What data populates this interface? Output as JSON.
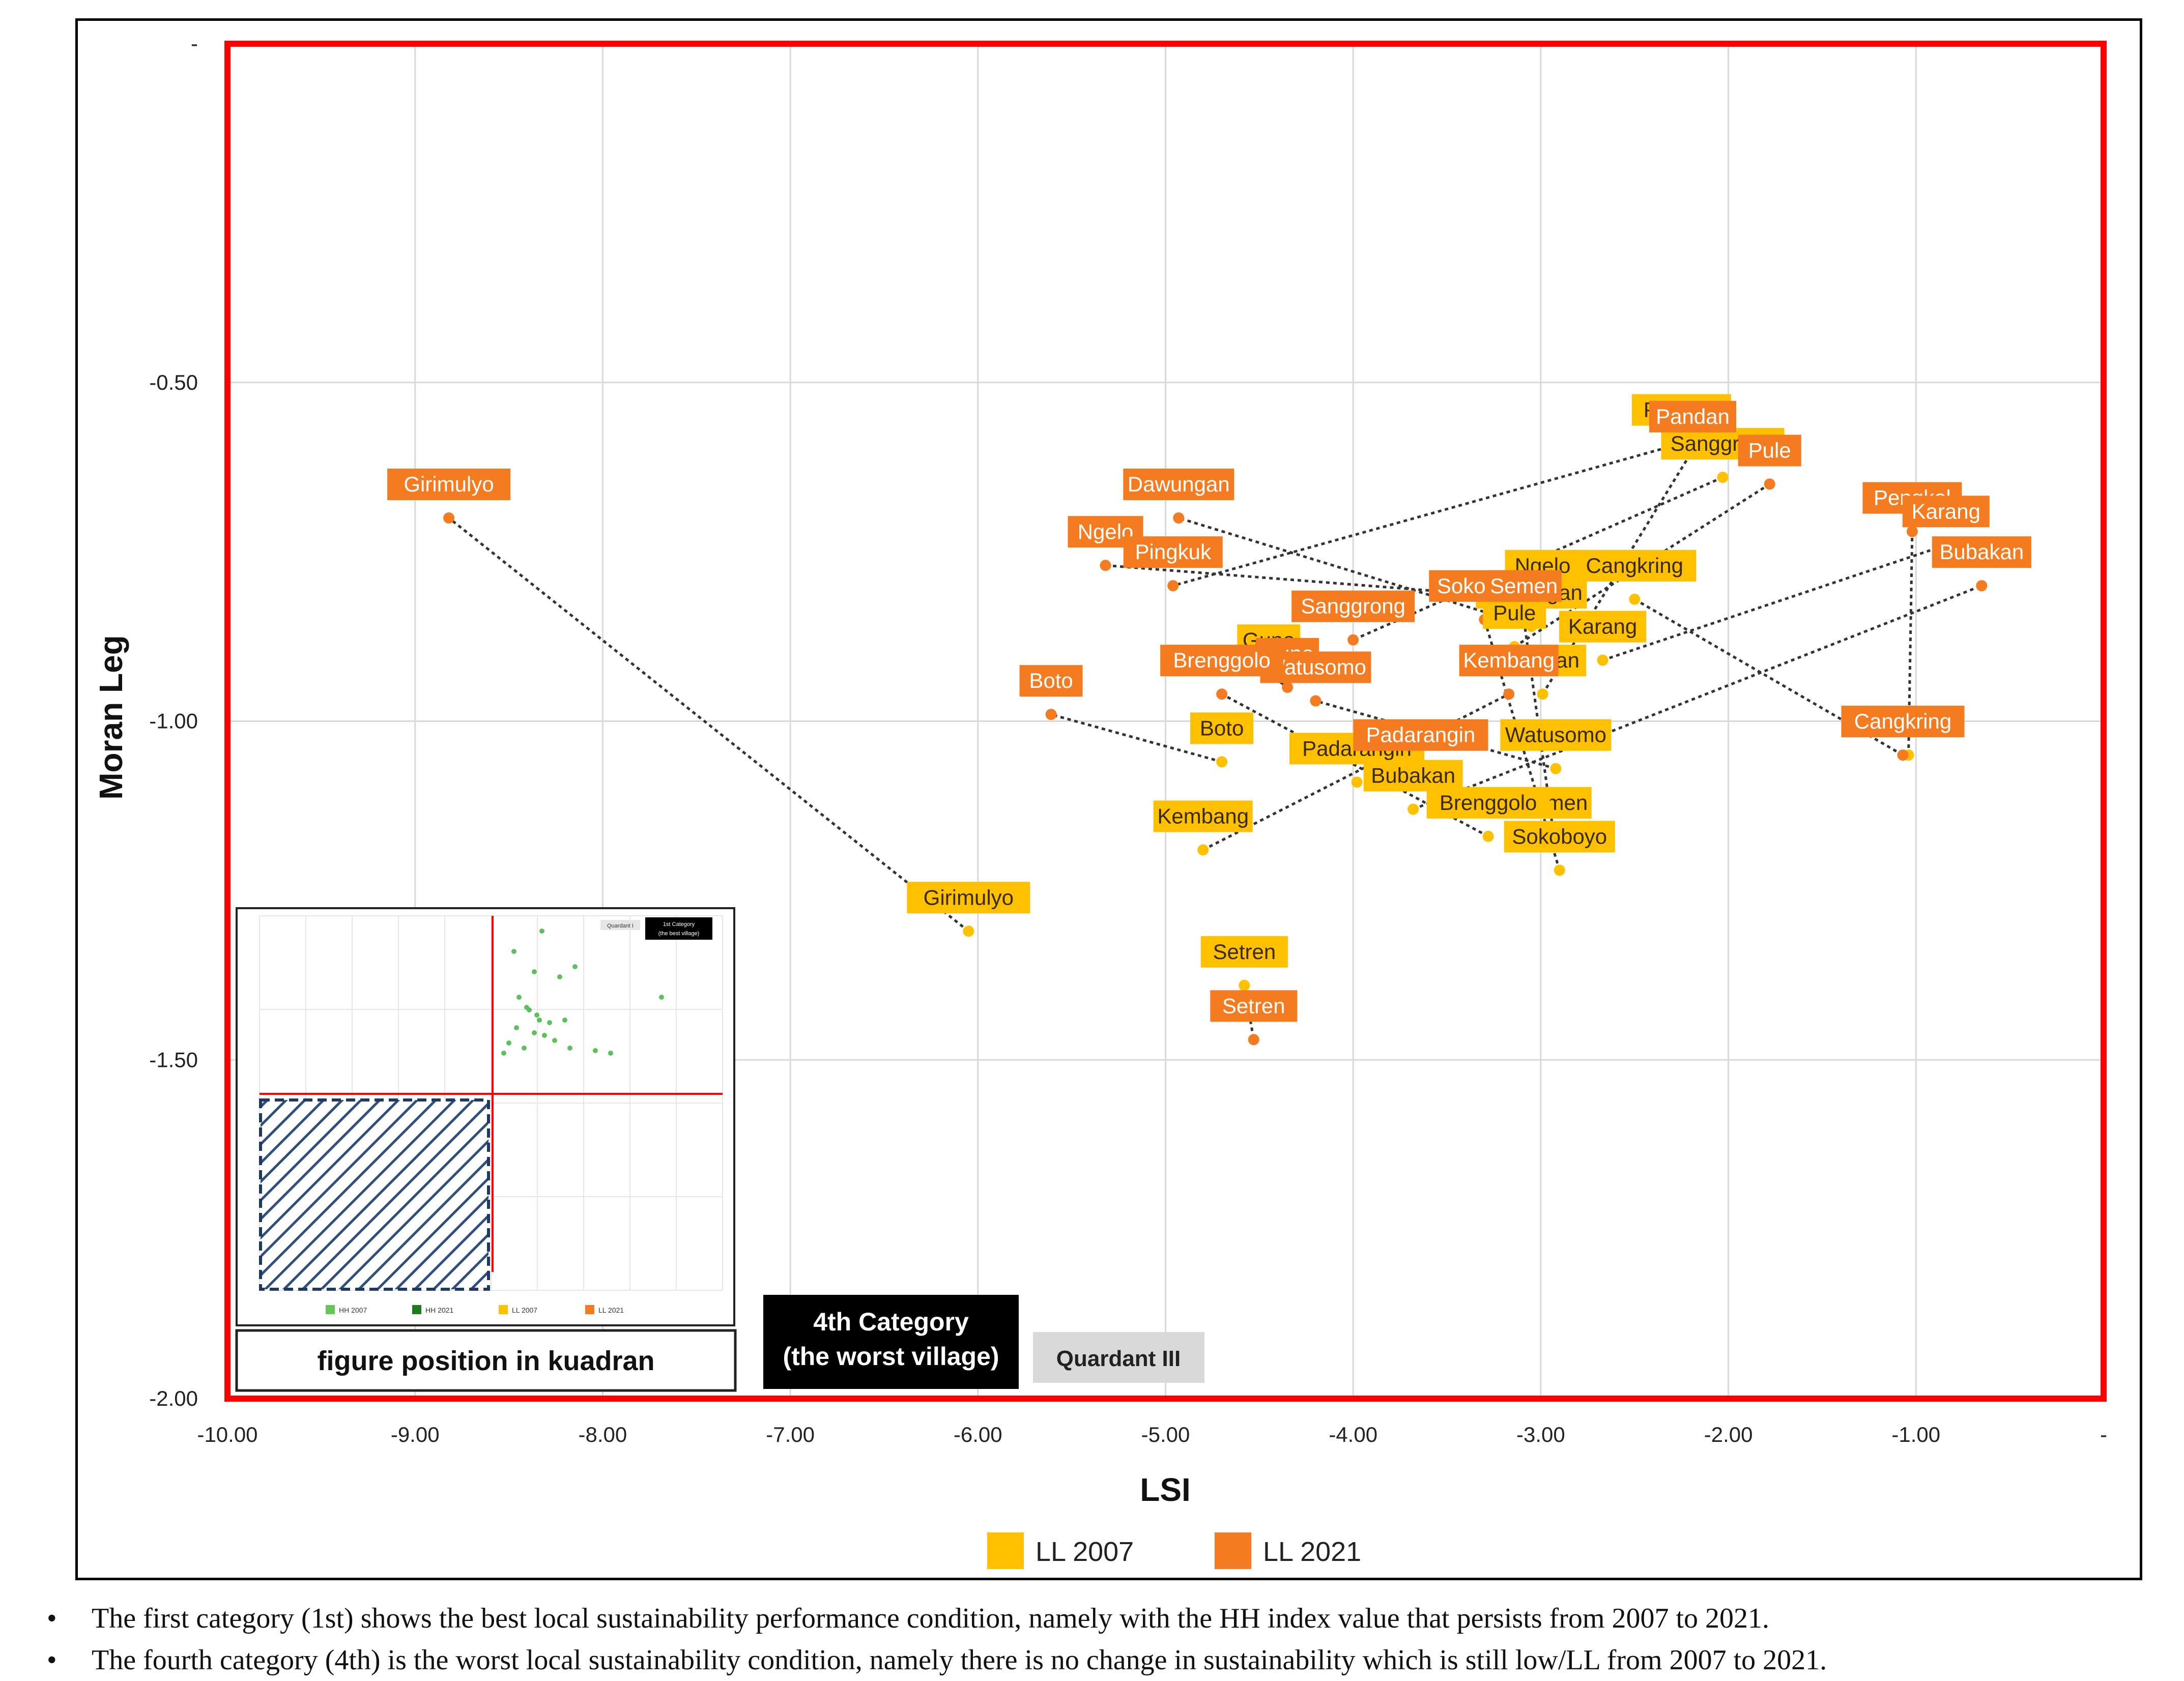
{
  "chart_data": {
    "type": "scatter",
    "xlabel": "LSI",
    "ylabel": "Moran Leg",
    "xlim": [
      -10,
      0
    ],
    "ylim": [
      -2,
      0
    ],
    "x_ticks": [
      -10,
      -9,
      -8,
      -7,
      -6,
      -5,
      -4,
      -3,
      -2,
      -1,
      0
    ],
    "x_tick_labels": [
      "-10.00",
      "-9.00",
      "-8.00",
      "-7.00",
      "-6.00",
      "-5.00",
      "-4.00",
      "-3.00",
      "-2.00",
      "-1.00",
      "-"
    ],
    "y_ticks": [
      0,
      -0.5,
      -1,
      -1.5,
      -2
    ],
    "y_tick_labels": [
      "-",
      "-0.50",
      "-1.00",
      "-1.50",
      "-2.00"
    ],
    "grid": true,
    "series": [
      {
        "name": "LL 2007",
        "color": "#ffc000",
        "points": [
          {
            "label": "Pingkuk",
            "x": -2.25,
            "y": -0.59
          },
          {
            "label": "Sanggrong",
            "x": -2.03,
            "y": -0.64
          },
          {
            "label": "Ngelo",
            "x": -2.99,
            "y": -0.82
          },
          {
            "label": "Cangkring",
            "x": -2.5,
            "y": -0.82
          },
          {
            "label": "Dawungan",
            "x": -3.05,
            "y": -0.86
          },
          {
            "label": "Pule",
            "x": -3.14,
            "y": -0.89
          },
          {
            "label": "Karang",
            "x": -2.67,
            "y": -0.91
          },
          {
            "label": "Guno",
            "x": -4.45,
            "y": -0.93
          },
          {
            "label": "Pandan",
            "x": -2.99,
            "y": -0.96
          },
          {
            "label": "Pengkol",
            "x": -1.04,
            "y": -1.05
          },
          {
            "label": "Boto",
            "x": -4.7,
            "y": -1.06
          },
          {
            "label": "Padarangin",
            "x": -3.98,
            "y": -1.09
          },
          {
            "label": "Watusomo",
            "x": -2.92,
            "y": -1.07
          },
          {
            "label": "Bubakan",
            "x": -3.68,
            "y": -1.13
          },
          {
            "label": "Semen",
            "x": -2.93,
            "y": -1.17
          },
          {
            "label": "Brenggolo",
            "x": -3.28,
            "y": -1.17
          },
          {
            "label": "Sokoboyo",
            "x": -2.9,
            "y": -1.22
          },
          {
            "label": "Kembang",
            "x": -4.8,
            "y": -1.19
          },
          {
            "label": "Girimulyo",
            "x": -6.05,
            "y": -1.31
          },
          {
            "label": "Setren",
            "x": -4.58,
            "y": -1.39
          }
        ]
      },
      {
        "name": "LL 2021",
        "color": "#f47b20",
        "points": [
          {
            "label": "Pandan",
            "x": -2.19,
            "y": -0.6
          },
          {
            "label": "Pule",
            "x": -1.78,
            "y": -0.65
          },
          {
            "label": "Girimulyo",
            "x": -8.82,
            "y": -0.7
          },
          {
            "label": "Dawungan",
            "x": -4.93,
            "y": -0.7
          },
          {
            "label": "Pengkol",
            "x": -1.02,
            "y": -0.72
          },
          {
            "label": "Karang",
            "x": -0.84,
            "y": -0.74
          },
          {
            "label": "Ngelo",
            "x": -5.32,
            "y": -0.77
          },
          {
            "label": "Pingkuk",
            "x": -4.96,
            "y": -0.8
          },
          {
            "label": "Bubakan",
            "x": -0.65,
            "y": -0.8
          },
          {
            "label": "Sokoboyo",
            "x": -3.3,
            "y": -0.85
          },
          {
            "label": "Semen",
            "x": -3.09,
            "y": -0.85
          },
          {
            "label": "Sanggrong",
            "x": -4.0,
            "y": -0.88
          },
          {
            "label": "Guno",
            "x": -4.35,
            "y": -0.95
          },
          {
            "label": "Watusomo",
            "x": -4.2,
            "y": -0.97
          },
          {
            "label": "Brenggolo",
            "x": -4.7,
            "y": -0.96
          },
          {
            "label": "Kembang",
            "x": -3.17,
            "y": -0.96
          },
          {
            "label": "Boto",
            "x": -5.61,
            "y": -0.99
          },
          {
            "label": "Padarangin",
            "x": -3.64,
            "y": -1.07
          },
          {
            "label": "Cangkring",
            "x": -1.07,
            "y": -1.05
          },
          {
            "label": "Setren",
            "x": -4.53,
            "y": -1.47
          }
        ]
      }
    ],
    "legend": {
      "placement": "bottom",
      "entries": [
        {
          "name": "LL 2007",
          "color": "#ffc000"
        },
        {
          "name": "LL 2021",
          "color": "#f47b20"
        }
      ]
    },
    "annotations": {
      "category_box_line1": "4th Category",
      "category_box_line2": "(the worst village)",
      "quadrant_label": "Quardant III",
      "inset_caption": "figure position in kuadran",
      "inset_tag_1": "Quardant I",
      "inset_tag_2": "1st Category",
      "inset_tag_3": "(the best village)",
      "inset_legend": [
        "HH 2007",
        "HH 2021",
        "LL 2007",
        "LL 2021"
      ]
    },
    "colors": {
      "ll2007": "#ffc000",
      "ll2021": "#f47b20",
      "quadrant_border": "#ff0000",
      "grid": "#d9d9d9"
    }
  },
  "notes": [
    {
      "bullet": "•",
      "text": "The first category (1st) shows the best local sustainability performance condition, namely with the HH index value that persists from 2007 to 2021."
    },
    {
      "bullet": "•",
      "text": "The fourth category (4th) is the worst local sustainability condition, namely there is no change in sustainability which is still low/LL from 2007 to 2021."
    }
  ]
}
